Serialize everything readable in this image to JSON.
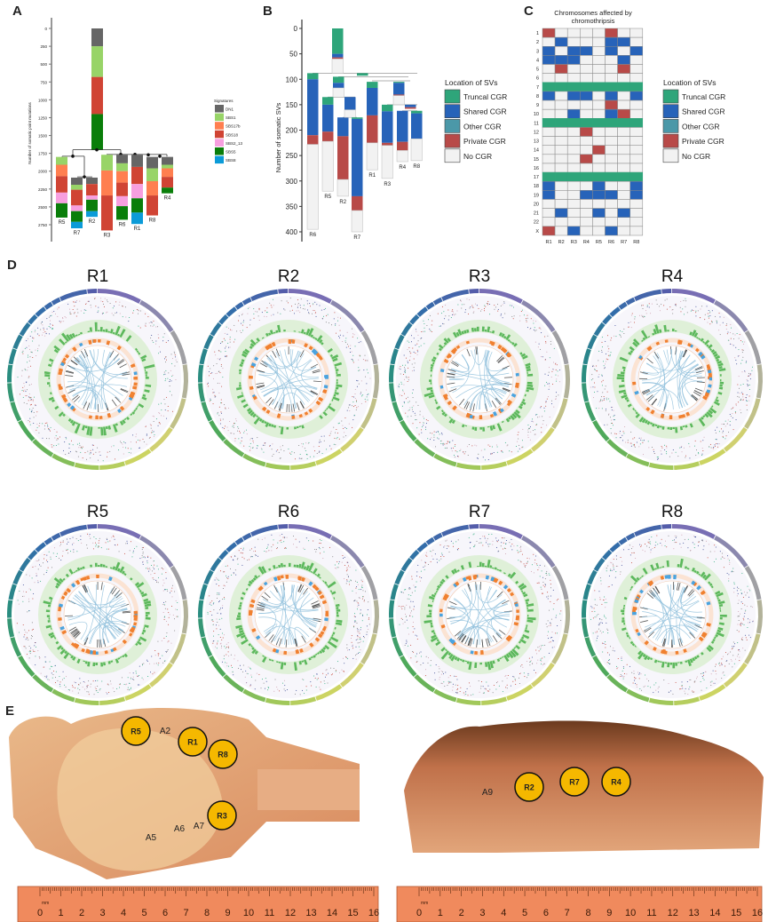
{
  "panel_labels": {
    "a": "A",
    "b": "B",
    "c": "C",
    "d": "D",
    "e": "E"
  },
  "colors": {
    "signatures": {
      "DN1": "#666666",
      "SBS1": "#98d468",
      "SBS17b": "#ff7f50",
      "SBS18": "#d04434",
      "SBS2_13": "#f79fdf",
      "SBS5": "#0a7e0a",
      "SBS8": "#0b9bd8"
    },
    "cgr": {
      "T": "#2ea57a",
      "S": "#2763b9",
      "O": "#4b98a8",
      "P": "#b84a48",
      "N": "#f2f2f2"
    },
    "marker": "#f5b800"
  },
  "chart_data": [
    {
      "id": "A",
      "type": "bar",
      "subtype": "stacked phylogenetic tree",
      "title": "",
      "ylabel": "Number of somatic point mutations",
      "ylim": [
        0,
        2900
      ],
      "yticks": [
        0,
        250,
        500,
        750,
        1000,
        1250,
        1500,
        1750,
        2000,
        2250,
        2500,
        2750
      ],
      "legend": {
        "title": "Signatures",
        "entries": [
          "DN1",
          "SBS1",
          "SBS17b",
          "SBS18",
          "SBS2_13",
          "SBS5",
          "SBS8"
        ],
        "placement": "right"
      },
      "trunk": [
        [
          "DN1",
          0,
          250
        ],
        [
          "SBS1",
          250,
          680
        ],
        [
          "SBS18",
          680,
          1200
        ],
        [
          "SBS5",
          1200,
          1700
        ]
      ],
      "branches": [
        {
          "name": "R5",
          "segments": [
            [
              "SBS1",
              1800,
              1910
            ],
            [
              "SBS17b",
              1910,
              2070
            ],
            [
              "SBS18",
              2070,
              2300
            ],
            [
              "SBS2_13",
              2300,
              2450
            ],
            [
              "SBS5",
              2450,
              2650
            ]
          ]
        },
        {
          "name": "R7",
          "segments": [
            [
              "DN1",
              2090,
              2190
            ],
            [
              "SBS1",
              2190,
              2260
            ],
            [
              "SBS18",
              2260,
              2480
            ],
            [
              "SBS2_13",
              2480,
              2560
            ],
            [
              "SBS5",
              2560,
              2710
            ],
            [
              "SBS8",
              2710,
              2800
            ]
          ]
        },
        {
          "name": "R2",
          "segments": [
            [
              "DN1",
              2090,
              2180
            ],
            [
              "SBS18",
              2180,
              2340
            ],
            [
              "SBS2_13",
              2340,
              2400
            ],
            [
              "SBS5",
              2400,
              2560
            ],
            [
              "SBS8",
              2560,
              2640
            ]
          ]
        },
        {
          "name": "R3",
          "segments": [
            [
              "SBS1",
              1770,
              1990
            ],
            [
              "SBS17b",
              1990,
              2340
            ],
            [
              "SBS18",
              2340,
              2830
            ]
          ]
        },
        {
          "name": "R6",
          "segments": [
            [
              "DN1",
              1770,
              1890
            ],
            [
              "SBS1",
              1890,
              2000
            ],
            [
              "SBS17b",
              2000,
              2160
            ],
            [
              "SBS18",
              2160,
              2350
            ],
            [
              "SBS2_13",
              2350,
              2490
            ],
            [
              "SBS5",
              2490,
              2680
            ]
          ]
        },
        {
          "name": "R1",
          "segments": [
            [
              "DN1",
              1770,
              1940
            ],
            [
              "SBS18",
              1940,
              2180
            ],
            [
              "SBS2_13",
              2180,
              2380
            ],
            [
              "SBS5",
              2380,
              2580
            ],
            [
              "SBS8",
              2580,
              2740
            ]
          ]
        },
        {
          "name": "R8",
          "segments": [
            [
              "DN1",
              1800,
              1960
            ],
            [
              "SBS1",
              1960,
              2140
            ],
            [
              "SBS17b",
              2140,
              2340
            ],
            [
              "SBS18",
              2340,
              2620
            ]
          ]
        },
        {
          "name": "R4",
          "segments": [
            [
              "DN1",
              1800,
              1910
            ],
            [
              "SBS1",
              1910,
              1960
            ],
            [
              "SBS17b",
              1960,
              2080
            ],
            [
              "SBS18",
              2080,
              2230
            ],
            [
              "SBS5",
              2230,
              2310
            ]
          ]
        }
      ]
    },
    {
      "id": "B",
      "type": "bar",
      "subtype": "stacked phylogenetic tree",
      "ylabel": "Number of somatic SVs",
      "ylim": [
        0,
        410
      ],
      "yticks": [
        0,
        50,
        100,
        150,
        200,
        250,
        300,
        350,
        400
      ],
      "legend": {
        "title": "Location of SVs",
        "entries": [
          [
            "T",
            "Truncal CGR"
          ],
          [
            "S",
            "Shared CGR"
          ],
          [
            "O",
            "Other CGR"
          ],
          [
            "P",
            "Private CGR"
          ],
          [
            "N",
            "No CGR"
          ]
        ],
        "placement": "right"
      },
      "bars": [
        {
          "name": "",
          "segments": [
            [
              "T",
              0,
              50
            ],
            [
              "S",
              50,
              57
            ],
            [
              "P",
              57,
              60
            ],
            [
              "N",
              60,
              88
            ]
          ]
        },
        {
          "name": "R6",
          "segments": [
            [
              "T",
              88,
              100
            ],
            [
              "S",
              100,
              210
            ],
            [
              "P",
              210,
              228
            ],
            [
              "N",
              228,
              395
            ]
          ]
        },
        {
          "name": "",
          "segments": [
            [
              "T",
              95,
              107
            ],
            [
              "S",
              107,
              117
            ],
            [
              "N",
              117,
              135
            ]
          ]
        },
        {
          "name": "R5",
          "segments": [
            [
              "T",
              135,
              150
            ],
            [
              "S",
              150,
              203
            ],
            [
              "P",
              203,
              222
            ],
            [
              "N",
              222,
              320
            ]
          ]
        },
        {
          "name": "R2",
          "segments": [
            [
              "S",
              175,
              212
            ],
            [
              "P",
              212,
              297
            ],
            [
              "N",
              297,
              330
            ]
          ]
        },
        {
          "name": "",
          "segments": [
            [
              "S",
              135,
              160
            ],
            [
              "N",
              160,
              175
            ]
          ]
        },
        {
          "name": "R7",
          "segments": [
            [
              "T",
              175,
              178
            ],
            [
              "S",
              178,
              330
            ],
            [
              "P",
              330,
              358
            ],
            [
              "N",
              358,
              400
            ]
          ]
        },
        {
          "name": "",
          "segments": [
            [
              "T",
              88,
              93
            ]
          ]
        },
        {
          "name": "R1",
          "segments": [
            [
              "T",
              105,
              117
            ],
            [
              "S",
              117,
              171
            ],
            [
              "P",
              171,
              225
            ],
            [
              "N",
              225,
              278
            ]
          ]
        },
        {
          "name": "R3",
          "segments": [
            [
              "T",
              150,
              163
            ],
            [
              "S",
              163,
              225
            ],
            [
              "P",
              225,
              230
            ],
            [
              "N",
              230,
              295
            ]
          ]
        },
        {
          "name": "",
          "segments": [
            [
              "T",
              105,
              107
            ],
            [
              "S",
              107,
              130
            ],
            [
              "P",
              130,
              132
            ],
            [
              "N",
              132,
              150
            ]
          ]
        },
        {
          "name": "R4",
          "segments": [
            [
              "S",
              162,
              223
            ],
            [
              "P",
              223,
              240
            ],
            [
              "N",
              240,
              262
            ]
          ]
        },
        {
          "name": "",
          "segments": [
            [
              "S",
              150,
              155
            ],
            [
              "P",
              155,
              158
            ]
          ]
        },
        {
          "name": "R8",
          "segments": [
            [
              "T",
              162,
              167
            ],
            [
              "S",
              167,
              217
            ],
            [
              "N",
              217,
              260
            ]
          ]
        }
      ]
    },
    {
      "id": "C",
      "type": "heatmap",
      "title": "Chromosomes affected by chromothripsis",
      "title_lines": [
        "Chromosomes affected by",
        "chromothripsis"
      ],
      "columns": [
        "R1",
        "R2",
        "R3",
        "R4",
        "R5",
        "R6",
        "R7",
        "R8"
      ],
      "rows": [
        "1",
        "2",
        "3",
        "4",
        "5",
        "6",
        "7",
        "8",
        "9",
        "10",
        "11",
        "12",
        "13",
        "14",
        "15",
        "16",
        "17",
        "18",
        "19",
        "20",
        "21",
        "22",
        "X"
      ],
      "values": [
        "PNNNNPNN",
        "NSNNNSSN",
        "SNSSNSNS",
        "SSSNNNSN",
        "NPNNNNPN",
        "NNNNNNNN",
        "TTTTTTTT",
        "SNSSNSNS",
        "NNNNNPNN",
        "NNSNNSPN",
        "TTTTTTTT",
        "NNNPNNNN",
        "NNNNNNNN",
        "NNNNPNNN",
        "NNNPNNNN",
        "NNNNNNNN",
        "TTTTTTTT",
        "SNNNSNNS",
        "SNNSSSNS",
        "NNNNNNNN",
        "NSNNSNSN",
        "NNNNNNNN",
        "PNSNNSNN"
      ],
      "legend": {
        "title": "Location of SVs",
        "entries": [
          [
            "T",
            "Truncal CGR"
          ],
          [
            "S",
            "Shared CGR"
          ],
          [
            "O",
            "Other CGR"
          ],
          [
            "P",
            "Private CGR"
          ],
          [
            "N",
            "No CGR"
          ]
        ],
        "placement": "right"
      }
    }
  ],
  "circos": {
    "samples": [
      "R1",
      "R2",
      "R3",
      "R4",
      "R5",
      "R6",
      "R7",
      "R8"
    ]
  },
  "specimens": {
    "left": {
      "regions": [
        "R5",
        "R1",
        "R8",
        "R3"
      ],
      "annotations": [
        "A2",
        "A5",
        "A6",
        "A7"
      ]
    },
    "right": {
      "regions": [
        "R2",
        "R7",
        "R4"
      ],
      "annotations": [
        "A9"
      ]
    },
    "ruler": {
      "unit": "mm",
      "ticks": [
        "0",
        "1",
        "2",
        "3",
        "4",
        "5",
        "6",
        "7",
        "8",
        "9",
        "10",
        "11",
        "12",
        "13",
        "14",
        "15",
        "16"
      ]
    }
  }
}
